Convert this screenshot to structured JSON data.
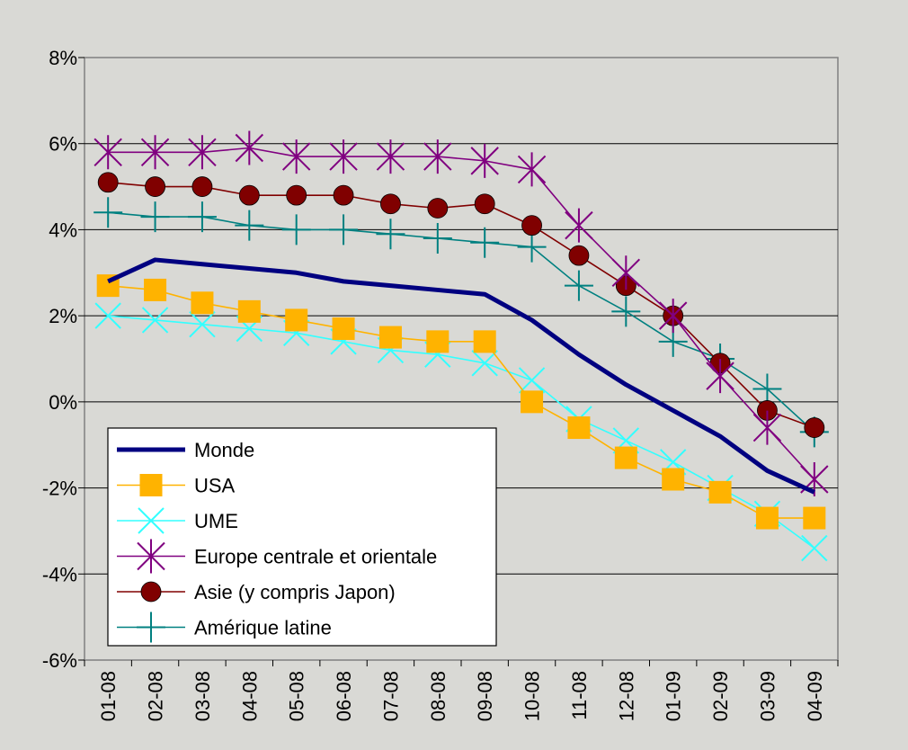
{
  "chart_data": {
    "type": "line",
    "title": "",
    "xlabel": "",
    "ylabel": "",
    "categories": [
      "01-08",
      "02-08",
      "03-08",
      "04-08",
      "05-08",
      "06-08",
      "07-08",
      "08-08",
      "09-08",
      "10-08",
      "11-08",
      "12-08",
      "01-09",
      "02-09",
      "03-09",
      "04-09"
    ],
    "ylim": [
      -0.06,
      0.08
    ],
    "yticks": [
      {
        "value": 0.08,
        "label": "8%"
      },
      {
        "value": 0.06,
        "label": "6%"
      },
      {
        "value": 0.04,
        "label": "4%"
      },
      {
        "value": 0.02,
        "label": "2%"
      },
      {
        "value": 0.0,
        "label": "0%"
      },
      {
        "value": -0.02,
        "label": "-2%"
      },
      {
        "value": -0.04,
        "label": "-4%"
      },
      {
        "value": -0.06,
        "label": "-6%"
      }
    ],
    "grid": "horizontal",
    "legend_position": "bottom-left",
    "series": [
      {
        "name": "Monde",
        "marker": "none",
        "color": "#000080",
        "values": [
          0.028,
          0.033,
          0.032,
          0.031,
          0.03,
          0.028,
          0.027,
          0.026,
          0.025,
          0.019,
          0.011,
          0.004,
          -0.002,
          -0.008,
          -0.016,
          -0.021
        ]
      },
      {
        "name": "USA",
        "marker": "square",
        "color": "#ffb300",
        "values": [
          0.027,
          0.026,
          0.023,
          0.021,
          0.019,
          0.017,
          0.015,
          0.014,
          0.014,
          0.0,
          -0.006,
          -0.013,
          -0.018,
          -0.021,
          -0.027,
          -0.027
        ]
      },
      {
        "name": "UME",
        "marker": "x",
        "color": "#33ffff",
        "values": [
          0.02,
          0.019,
          0.018,
          0.017,
          0.016,
          0.014,
          0.012,
          0.011,
          0.009,
          0.005,
          -0.004,
          -0.009,
          -0.014,
          -0.02,
          -0.026,
          -0.034
        ]
      },
      {
        "name": "Europe centrale et orientale",
        "marker": "asterisk",
        "color": "#800080",
        "values": [
          0.058,
          0.058,
          0.058,
          0.059,
          0.057,
          0.057,
          0.057,
          0.057,
          0.056,
          0.054,
          0.041,
          0.03,
          0.02,
          0.006,
          -0.006,
          -0.018
        ]
      },
      {
        "name": "Asie (y compris Japon)",
        "marker": "circle",
        "color": "#800000",
        "values": [
          0.051,
          0.05,
          0.05,
          0.048,
          0.048,
          0.048,
          0.046,
          0.045,
          0.046,
          0.041,
          0.034,
          0.027,
          0.02,
          0.009,
          -0.002,
          -0.006
        ]
      },
      {
        "name": "Amérique latine",
        "marker": "plus",
        "color": "#008080",
        "values": [
          0.044,
          0.043,
          0.043,
          0.041,
          0.04,
          0.04,
          0.039,
          0.038,
          0.037,
          0.036,
          0.027,
          0.021,
          0.014,
          0.01,
          0.003,
          -0.007
        ]
      }
    ]
  }
}
